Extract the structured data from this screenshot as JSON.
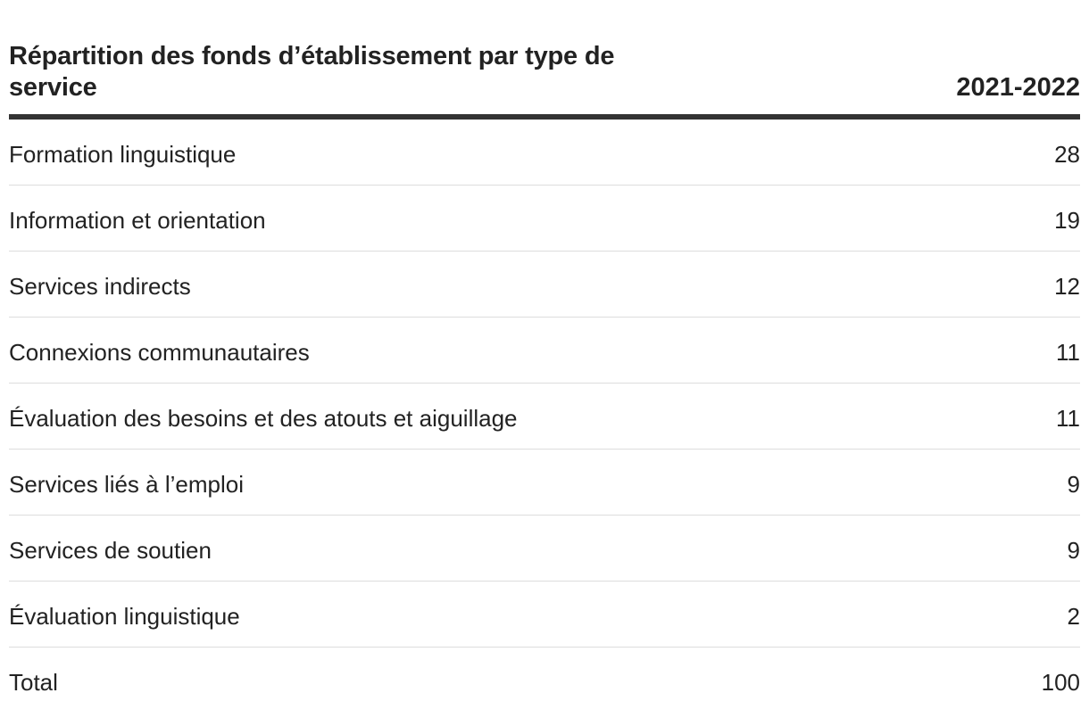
{
  "chart_data": {
    "type": "table",
    "title": "Répartition des fonds d’établissement par type de service",
    "column_header": "2021-2022",
    "rows": [
      {
        "label": "Formation linguistique",
        "value": "28"
      },
      {
        "label": "Information et orientation",
        "value": "19"
      },
      {
        "label": "Services indirects",
        "value": "12"
      },
      {
        "label": "Connexions communautaires",
        "value": "11"
      },
      {
        "label": "Évaluation des besoins et des atouts et aiguillage",
        "value": "11"
      },
      {
        "label": "Services liés à l’emploi",
        "value": "9"
      },
      {
        "label": "Services de soutien",
        "value": "9"
      },
      {
        "label": "Évaluation linguistique",
        "value": "2"
      },
      {
        "label": "Total",
        "value": "100"
      }
    ]
  },
  "colors": {
    "text": "#222222",
    "header_rule": "#333333",
    "row_rule": "#dddddd"
  }
}
